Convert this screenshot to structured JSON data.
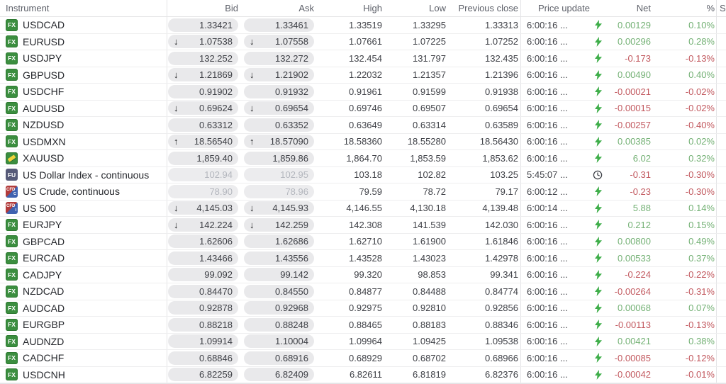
{
  "header": {
    "columns": {
      "instrument": "Instrument",
      "bid": "Bid",
      "ask": "Ask",
      "high": "High",
      "low": "Low",
      "prev": "Previous close",
      "update": "Price update",
      "net": "Net",
      "pct": "%",
      "spread_truncated": "S"
    }
  },
  "colors": {
    "positive": "#74b175",
    "negative": "#c2595f",
    "bolt_icon": "#3fae4a",
    "fx_badge": "#3b8e3f",
    "fu_badge": "#565a78",
    "cfd_badge_red": "#b23b3b",
    "cfd_badge_blue": "#3f62b0",
    "pill_background": "#e9e9eb"
  },
  "rows": [
    {
      "name": "USDCAD",
      "icon": "fx",
      "icon_sub": "",
      "bid": "1.33421",
      "ask": "1.33461",
      "dir": "",
      "high": "1.33519",
      "low": "1.33295",
      "prev": "1.33313",
      "update": "6:00:16 ...",
      "update_icon": "bolt",
      "net": "0.00129",
      "pct": "0.10%",
      "trend": "up",
      "inactive": false
    },
    {
      "name": "EURUSD",
      "icon": "fx",
      "icon_sub": "",
      "bid": "1.07538",
      "ask": "1.07558",
      "dir": "down",
      "high": "1.07661",
      "low": "1.07225",
      "prev": "1.07252",
      "update": "6:00:16 ...",
      "update_icon": "bolt",
      "net": "0.00296",
      "pct": "0.28%",
      "trend": "up",
      "inactive": false
    },
    {
      "name": "USDJPY",
      "icon": "fx",
      "icon_sub": "",
      "bid": "132.252",
      "ask": "132.272",
      "dir": "",
      "high": "132.454",
      "low": "131.797",
      "prev": "132.435",
      "update": "6:00:16 ...",
      "update_icon": "bolt",
      "net": "-0.173",
      "pct": "-0.13%",
      "trend": "down",
      "inactive": false
    },
    {
      "name": "GBPUSD",
      "icon": "fx",
      "icon_sub": "",
      "bid": "1.21869",
      "ask": "1.21902",
      "dir": "down",
      "high": "1.22032",
      "low": "1.21357",
      "prev": "1.21396",
      "update": "6:00:16 ...",
      "update_icon": "bolt",
      "net": "0.00490",
      "pct": "0.40%",
      "trend": "up",
      "inactive": false
    },
    {
      "name": "USDCHF",
      "icon": "fx",
      "icon_sub": "",
      "bid": "0.91902",
      "ask": "0.91932",
      "dir": "",
      "high": "0.91961",
      "low": "0.91599",
      "prev": "0.91938",
      "update": "6:00:16 ...",
      "update_icon": "bolt",
      "net": "-0.00021",
      "pct": "-0.02%",
      "trend": "down",
      "inactive": false
    },
    {
      "name": "AUDUSD",
      "icon": "fx",
      "icon_sub": "",
      "bid": "0.69624",
      "ask": "0.69654",
      "dir": "down",
      "high": "0.69746",
      "low": "0.69507",
      "prev": "0.69654",
      "update": "6:00:16 ...",
      "update_icon": "bolt",
      "net": "-0.00015",
      "pct": "-0.02%",
      "trend": "down",
      "inactive": false
    },
    {
      "name": "NZDUSD",
      "icon": "fx",
      "icon_sub": "",
      "bid": "0.63312",
      "ask": "0.63352",
      "dir": "",
      "high": "0.63649",
      "low": "0.63314",
      "prev": "0.63589",
      "update": "6:00:16 ...",
      "update_icon": "bolt",
      "net": "-0.00257",
      "pct": "-0.40%",
      "trend": "down",
      "inactive": false
    },
    {
      "name": "USDMXN",
      "icon": "fx",
      "icon_sub": "",
      "bid": "18.56540",
      "ask": "18.57090",
      "dir": "up",
      "high": "18.58360",
      "low": "18.55280",
      "prev": "18.56430",
      "update": "6:00:16 ...",
      "update_icon": "bolt",
      "net": "0.00385",
      "pct": "0.02%",
      "trend": "up",
      "inactive": false
    },
    {
      "name": "XAUUSD",
      "icon": "gold",
      "icon_sub": "",
      "bid": "1,859.40",
      "ask": "1,859.86",
      "dir": "",
      "high": "1,864.70",
      "low": "1,853.59",
      "prev": "1,853.62",
      "update": "6:00:16 ...",
      "update_icon": "bolt",
      "net": "6.02",
      "pct": "0.32%",
      "trend": "up",
      "inactive": false
    },
    {
      "name": "US Dollar Index - continuous",
      "icon": "fu",
      "icon_sub": "",
      "bid": "102.94",
      "ask": "102.95",
      "dir": "",
      "high": "103.18",
      "low": "102.82",
      "prev": "103.25",
      "update": "5:45:07 ...",
      "update_icon": "clock",
      "net": "-0.31",
      "pct": "-0.30%",
      "trend": "down",
      "inactive": true
    },
    {
      "name": "US Crude, continuous",
      "icon": "cfd",
      "icon_sub": "C",
      "bid": "78.90",
      "ask": "78.96",
      "dir": "",
      "high": "79.59",
      "low": "78.72",
      "prev": "79.17",
      "update": "6:00:12 ...",
      "update_icon": "bolt",
      "net": "-0.23",
      "pct": "-0.30%",
      "trend": "down",
      "inactive": true
    },
    {
      "name": "US 500",
      "icon": "cfd",
      "icon_sub": "I",
      "bid": "4,145.03",
      "ask": "4,145.93",
      "dir": "down",
      "high": "4,146.55",
      "low": "4,130.18",
      "prev": "4,139.48",
      "update": "6:00:14 ...",
      "update_icon": "bolt",
      "net": "5.88",
      "pct": "0.14%",
      "trend": "up",
      "inactive": false
    },
    {
      "name": "EURJPY",
      "icon": "fx",
      "icon_sub": "",
      "bid": "142.224",
      "ask": "142.259",
      "dir": "down",
      "high": "142.308",
      "low": "141.539",
      "prev": "142.030",
      "update": "6:00:16 ...",
      "update_icon": "bolt",
      "net": "0.212",
      "pct": "0.15%",
      "trend": "up",
      "inactive": false
    },
    {
      "name": "GBPCAD",
      "icon": "fx",
      "icon_sub": "",
      "bid": "1.62606",
      "ask": "1.62686",
      "dir": "",
      "high": "1.62710",
      "low": "1.61900",
      "prev": "1.61846",
      "update": "6:00:16 ...",
      "update_icon": "bolt",
      "net": "0.00800",
      "pct": "0.49%",
      "trend": "up",
      "inactive": false
    },
    {
      "name": "EURCAD",
      "icon": "fx",
      "icon_sub": "",
      "bid": "1.43466",
      "ask": "1.43556",
      "dir": "",
      "high": "1.43528",
      "low": "1.43023",
      "prev": "1.42978",
      "update": "6:00:16 ...",
      "update_icon": "bolt",
      "net": "0.00533",
      "pct": "0.37%",
      "trend": "up",
      "inactive": false
    },
    {
      "name": "CADJPY",
      "icon": "fx",
      "icon_sub": "",
      "bid": "99.092",
      "ask": "99.142",
      "dir": "",
      "high": "99.320",
      "low": "98.853",
      "prev": "99.341",
      "update": "6:00:16 ...",
      "update_icon": "bolt",
      "net": "-0.224",
      "pct": "-0.22%",
      "trend": "down",
      "inactive": false
    },
    {
      "name": "NZDCAD",
      "icon": "fx",
      "icon_sub": "",
      "bid": "0.84470",
      "ask": "0.84550",
      "dir": "",
      "high": "0.84877",
      "low": "0.84488",
      "prev": "0.84774",
      "update": "6:00:16 ...",
      "update_icon": "bolt",
      "net": "-0.00264",
      "pct": "-0.31%",
      "trend": "down",
      "inactive": false
    },
    {
      "name": "AUDCAD",
      "icon": "fx",
      "icon_sub": "",
      "bid": "0.92878",
      "ask": "0.92968",
      "dir": "",
      "high": "0.92975",
      "low": "0.92810",
      "prev": "0.92856",
      "update": "6:00:16 ...",
      "update_icon": "bolt",
      "net": "0.00068",
      "pct": "0.07%",
      "trend": "up",
      "inactive": false
    },
    {
      "name": "EURGBP",
      "icon": "fx",
      "icon_sub": "",
      "bid": "0.88218",
      "ask": "0.88248",
      "dir": "",
      "high": "0.88465",
      "low": "0.88183",
      "prev": "0.88346",
      "update": "6:00:16 ...",
      "update_icon": "bolt",
      "net": "-0.00113",
      "pct": "-0.13%",
      "trend": "down",
      "inactive": false
    },
    {
      "name": "AUDNZD",
      "icon": "fx",
      "icon_sub": "",
      "bid": "1.09914",
      "ask": "1.10004",
      "dir": "",
      "high": "1.09964",
      "low": "1.09425",
      "prev": "1.09538",
      "update": "6:00:16 ...",
      "update_icon": "bolt",
      "net": "0.00421",
      "pct": "0.38%",
      "trend": "up",
      "inactive": false
    },
    {
      "name": "CADCHF",
      "icon": "fx",
      "icon_sub": "",
      "bid": "0.68846",
      "ask": "0.68916",
      "dir": "",
      "high": "0.68929",
      "low": "0.68702",
      "prev": "0.68966",
      "update": "6:00:16 ...",
      "update_icon": "bolt",
      "net": "-0.00085",
      "pct": "-0.12%",
      "trend": "down",
      "inactive": false
    },
    {
      "name": "USDCNH",
      "icon": "fx",
      "icon_sub": "",
      "bid": "6.82259",
      "ask": "6.82409",
      "dir": "",
      "high": "6.82611",
      "low": "6.81819",
      "prev": "6.82376",
      "update": "6:00:16 ...",
      "update_icon": "bolt",
      "net": "-0.00042",
      "pct": "-0.01%",
      "trend": "down",
      "inactive": false
    }
  ]
}
